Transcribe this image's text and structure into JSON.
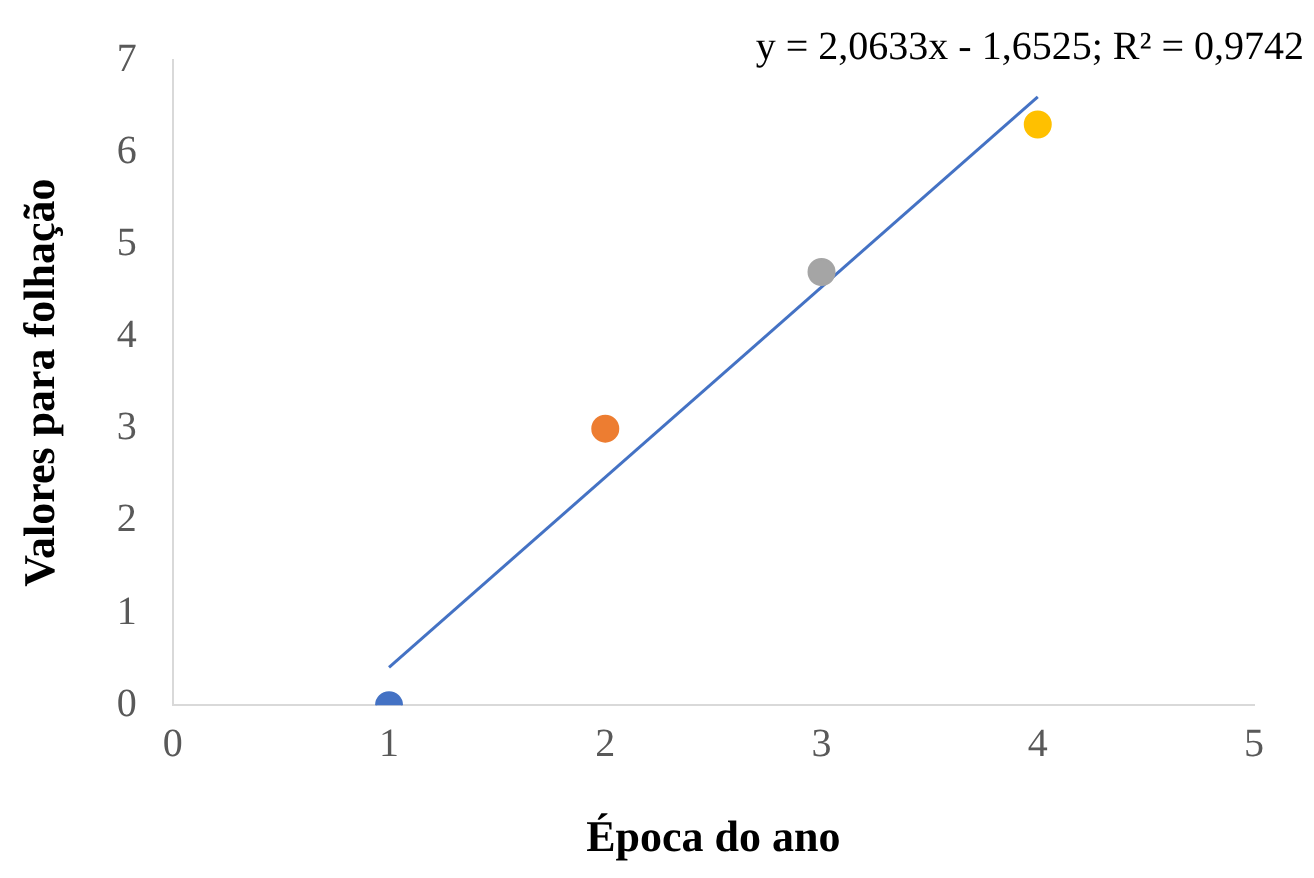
{
  "chart_data": {
    "type": "scatter",
    "xlabel": "Época do ano",
    "ylabel": "Valores para folhação",
    "xlim": [
      0,
      5
    ],
    "xticks": [
      0,
      1,
      2,
      3,
      4,
      5
    ],
    "ylim": [
      0,
      7
    ],
    "yticks": [
      0,
      1,
      2,
      3,
      4,
      5,
      6,
      7
    ],
    "grid": false,
    "marker": "circle",
    "annotations": [
      "y = 2,0633x - 1,6525; R² = 0,9742"
    ],
    "series": [
      {
        "x": [
          1,
          2,
          3,
          4
        ],
        "values": [
          0,
          3,
          4.7,
          6.3
        ],
        "colors": [
          "#4472c4",
          "#ed7d31",
          "#a5a5a5",
          "#ffc000"
        ]
      },
      {
        "type": "line",
        "x": [
          1,
          4
        ],
        "values": [
          0.41,
          6.6
        ],
        "color": "#4472c4",
        "marker": "none",
        "line_style": "solid"
      }
    ]
  }
}
